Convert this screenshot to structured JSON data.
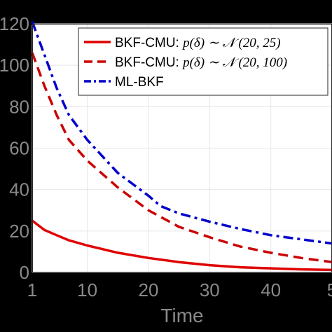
{
  "chart_data": {
    "type": "line",
    "xlabel": "Time",
    "ylabel": "",
    "xlim": [
      1,
      50
    ],
    "ylim": [
      0,
      120
    ],
    "xticks": [
      "1",
      "10",
      "20",
      "30",
      "40",
      "5"
    ],
    "yticks": [
      "0",
      "20",
      "40",
      "60",
      "80",
      "100",
      "120"
    ],
    "grid": true,
    "legend_position": "top-right",
    "series": [
      {
        "name": "BKF-CMU: ",
        "name_math": "p(δ) ∼ 𝒩 (20, 25)",
        "color": "#e00000",
        "style": "solid",
        "x": [
          1,
          3,
          5,
          7,
          10,
          15,
          20,
          25,
          30,
          35,
          40,
          45,
          50
        ],
        "y": [
          25,
          20.5,
          18,
          15.5,
          13,
          9.5,
          7,
          5,
          3.5,
          2.5,
          2,
          1.5,
          1.2
        ]
      },
      {
        "name": "BKF-CMU: ",
        "name_math": "p(δ) ∼ 𝒩 (20, 100)",
        "color": "#cc0000",
        "style": "dashed",
        "x": [
          1,
          3,
          5,
          7,
          10,
          15,
          20,
          25,
          30,
          35,
          40,
          45,
          50
        ],
        "y": [
          106,
          90,
          76,
          64,
          54,
          41,
          30,
          22,
          17,
          12.5,
          9.5,
          7,
          5
        ]
      },
      {
        "name": "ML-BKF",
        "name_math": "",
        "color": "#0000cc",
        "style": "dashdot",
        "x": [
          1,
          3,
          5,
          7,
          10,
          15,
          20,
          22,
          25,
          30,
          35,
          40,
          45,
          50
        ],
        "y": [
          121,
          105,
          89,
          76,
          64,
          48,
          37,
          32,
          28.5,
          24.5,
          21,
          18,
          16,
          14
        ]
      }
    ]
  }
}
